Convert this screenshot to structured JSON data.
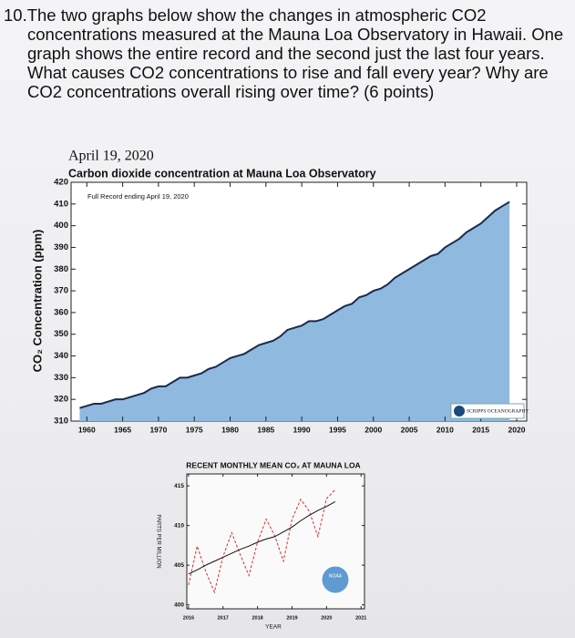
{
  "question": {
    "text": "10.The two graphs below show the changes in atmospheric CO2 concentrations measured at the Mauna Loa Observatory in Hawaii. One graph shows the entire record and the second just the last four years. What causes CO2 concentrations to rise and fall every year? Why are CO2 concentrations overall rising over time? (6 points)"
  },
  "chart_data": [
    {
      "type": "area",
      "date": "April 19, 2020",
      "title": "Carbon dioxide concentration at Mauna Loa Observatory",
      "annotation": "Full Record ending April 19, 2020",
      "y_label": "CO₂ Concentration (ppm)",
      "logo_text": "SCRIPPS OCEANOGRAPHY",
      "x": [
        1959,
        1960,
        1961,
        1962,
        1963,
        1964,
        1965,
        1966,
        1967,
        1968,
        1969,
        1970,
        1971,
        1972,
        1973,
        1974,
        1975,
        1976,
        1977,
        1978,
        1979,
        1980,
        1981,
        1982,
        1983,
        1984,
        1985,
        1986,
        1987,
        1988,
        1989,
        1990,
        1991,
        1992,
        1993,
        1994,
        1995,
        1996,
        1997,
        1998,
        1999,
        2000,
        2001,
        2002,
        2003,
        2004,
        2005,
        2006,
        2007,
        2008,
        2009,
        2010,
        2011,
        2012,
        2013,
        2014,
        2015,
        2016,
        2017,
        2018,
        2019
      ],
      "values": [
        316,
        317,
        318,
        318,
        319,
        320,
        320,
        321,
        322,
        323,
        325,
        326,
        326,
        328,
        330,
        330,
        331,
        332,
        334,
        335,
        337,
        339,
        340,
        341,
        343,
        345,
        346,
        347,
        349,
        352,
        353,
        354,
        356,
        356,
        357,
        359,
        361,
        363,
        364,
        367,
        368,
        370,
        371,
        373,
        376,
        378,
        380,
        382,
        384,
        386,
        387,
        390,
        392,
        394,
        397,
        399,
        401,
        404,
        407,
        409,
        411
      ],
      "color": "#8fb9df",
      "line_color": "#1c2a4a",
      "xlim": [
        1957.8,
        2021.4
      ],
      "ylim": [
        310,
        420
      ],
      "xticks": [
        1960,
        1965,
        1970,
        1975,
        1980,
        1985,
        1990,
        1995,
        2000,
        2005,
        2010,
        2015,
        2020
      ],
      "yticks": [
        310,
        320,
        330,
        340,
        350,
        360,
        370,
        380,
        390,
        400,
        410,
        420
      ]
    },
    {
      "type": "line",
      "title": "RECENT MONTHLY MEAN CO₂ AT MAUNA LOA",
      "x_label": "YEAR",
      "y_label": "PARTS PER MILLION",
      "logo_text": "NOAA",
      "x": [
        2016,
        2016.25,
        2016.5,
        2016.75,
        2017,
        2017.25,
        2017.5,
        2017.75,
        2018,
        2018.25,
        2018.5,
        2018.75,
        2019,
        2019.25,
        2019.5,
        2019.75,
        2020,
        2020.25
      ],
      "series": [
        {
          "color": "#d9302c",
          "line_style": "dashed",
          "values": [
            402.5,
            407.4,
            404.2,
            401.6,
            406.1,
            409.1,
            406.3,
            403.7,
            407.9,
            410.8,
            408.7,
            405.5,
            410.8,
            413.3,
            411.8,
            408.6,
            413.4,
            414.5
          ]
        },
        {
          "color": "#111111",
          "line_style": "solid",
          "values": [
            403.9,
            404.4,
            405.0,
            405.5,
            406.0,
            406.5,
            407.0,
            407.4,
            407.9,
            408.3,
            408.6,
            409.2,
            409.8,
            410.6,
            411.3,
            411.9,
            412.4,
            413.0
          ]
        }
      ],
      "xlim": [
        2015.95,
        2021.1
      ],
      "ylim": [
        399.5,
        416.5
      ],
      "xticks": [
        2016,
        2017,
        2018,
        2019,
        2020,
        2021
      ],
      "yticks": [
        400,
        405,
        410,
        415
      ]
    }
  ]
}
